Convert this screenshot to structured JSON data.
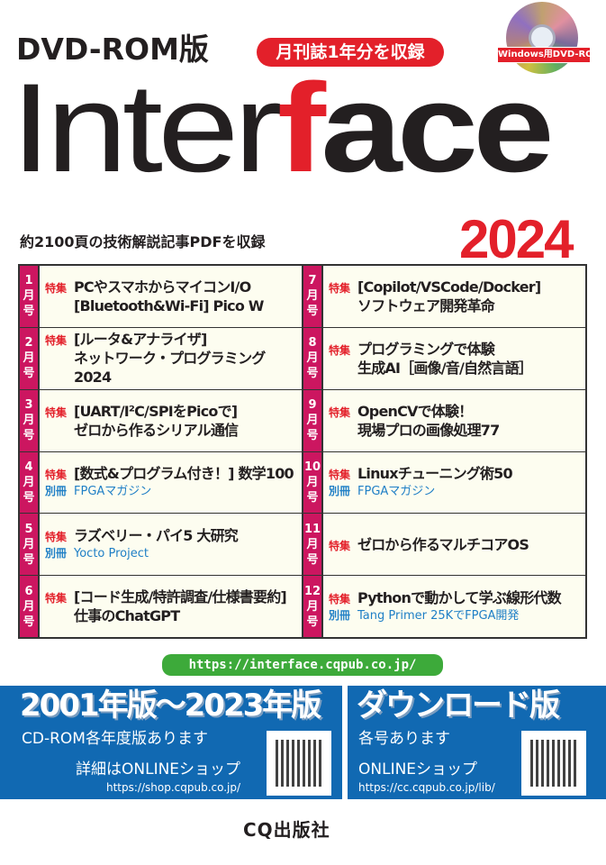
{
  "header": {
    "edition": "DVD-ROM版",
    "badge": "月刊誌1年分を収録",
    "disc_label": "Windows用DVD-ROM",
    "title_a": "Inter",
    "title_f": "f",
    "title_b": "ace",
    "year": "2024",
    "subtitle": "約2100頁の技術解説記事PDFを収録"
  },
  "colors": {
    "red": "#e3202a",
    "month_tab": "#cc1660",
    "panel_blue": "#1169b2",
    "url_green": "#3daa3a",
    "link_blue": "#1f7fc6"
  },
  "issues": [
    {
      "month": [
        "1",
        "月",
        "号"
      ],
      "tag": "特集",
      "title": [
        "PCやスマホからマイコンI/O",
        "[Bluetooth&Wi-Fi] Pico W"
      ]
    },
    {
      "month": [
        "7",
        "月",
        "号"
      ],
      "tag": "特集",
      "title": [
        "[Copilot/VSCode/Docker]",
        "ソフトウェア開発革命"
      ]
    },
    {
      "month": [
        "2",
        "月",
        "号"
      ],
      "tag": "特集",
      "title": [
        "[ルータ&アナライザ]",
        "ネットワーク・プログラミング2024"
      ]
    },
    {
      "month": [
        "8",
        "月",
        "号"
      ],
      "tag": "特集",
      "title": [
        "プログラミングで体験",
        "生成AI［画像/音/自然言語］"
      ]
    },
    {
      "month": [
        "3",
        "月",
        "号"
      ],
      "tag": "特集",
      "title": [
        "[UART/I²C/SPIをPicoで]",
        "ゼロから作るシリアル通信"
      ]
    },
    {
      "month": [
        "9",
        "月",
        "号"
      ],
      "tag": "特集",
      "title": [
        "OpenCVで体験！",
        "現場プロの画像処理77"
      ]
    },
    {
      "month": [
        "4",
        "月",
        "号"
      ],
      "tag": "特集",
      "title": [
        "[数式&プログラム付き！] 数学100"
      ],
      "extra_tag": "別冊",
      "extra": "FPGAマガジン"
    },
    {
      "month": [
        "10",
        "月",
        "号"
      ],
      "tag": "特集",
      "title": [
        "Linuxチューニング術50"
      ],
      "extra_tag": "別冊",
      "extra": "FPGAマガジン"
    },
    {
      "month": [
        "5",
        "月",
        "号"
      ],
      "tag": "特集",
      "title": [
        "ラズベリー・パイ5 大研究"
      ],
      "extra_tag": "別冊",
      "extra": "Yocto Project"
    },
    {
      "month": [
        "11",
        "月",
        "号"
      ],
      "tag": "特集",
      "title": [
        "ゼロから作るマルチコアOS"
      ]
    },
    {
      "month": [
        "6",
        "月",
        "号"
      ],
      "tag": "特集",
      "title": [
        "[コード生成/特許調査/仕様書要約]",
        "仕事のChatGPT"
      ]
    },
    {
      "month": [
        "12",
        "月",
        "号"
      ],
      "tag": "特集",
      "title": [
        "Pythonで動かして学ぶ線形代数"
      ],
      "extra_tag": "別冊",
      "extra": "Tang Primer 25KでFPGA開発"
    }
  ],
  "url": "https://interface.cqpub.co.jp/",
  "panel_left": {
    "heading": "2001年版～2023年版",
    "line1": "CD-ROM各年度版あります",
    "line2": "詳細はONLINEショップ",
    "url": "https://shop.cqpub.co.jp/"
  },
  "panel_right": {
    "heading": "ダウンロード版",
    "line1": "各号あります",
    "line2": "ONLINEショップ",
    "url": "https://cc.cqpub.co.jp/lib/"
  },
  "publisher": "CQ出版社"
}
